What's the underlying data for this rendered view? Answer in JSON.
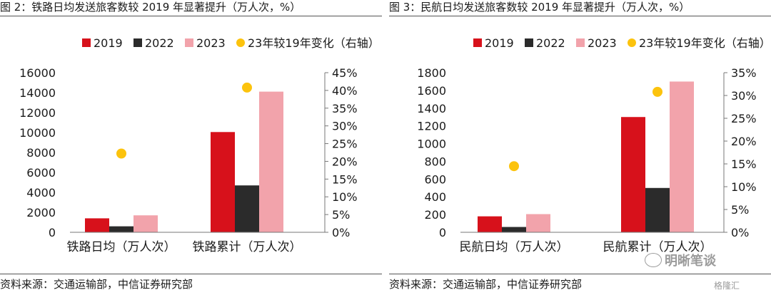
{
  "figures": [
    {
      "title": "图 2：铁路日均发送旅客数较 2019 年显著提升（万人次，%）",
      "source": "资料来源：交通运输部，中信证券研究部"
    },
    {
      "title": "图 3：民航日均发送旅客数较 2019 年显著提升（万人次，%）",
      "source": "资料来源：交通运输部，中信证券研究部"
    }
  ],
  "colors": {
    "2019": "#d7111b",
    "2022": "#2b2b2b",
    "2023": "#f2a3ab",
    "change": "#fcc30d"
  },
  "watermark": {
    "text": "明晰笔谈",
    "sub": "格隆汇"
  },
  "chart_data": [
    {
      "type": "bar",
      "categories": [
        "铁路日均（万人次）",
        "铁路累计（万人次）"
      ],
      "series": [
        {
          "name": "2019",
          "values": [
            1400,
            10050
          ]
        },
        {
          "name": "2022",
          "values": [
            600,
            4700
          ]
        },
        {
          "name": "2023",
          "values": [
            1700,
            14100
          ]
        }
      ],
      "secondary_series": {
        "name": "23年较19年变化（右轴）",
        "type": "scatter",
        "values": [
          22.2,
          40.8
        ]
      },
      "yticks": [
        "0",
        "2000",
        "4000",
        "6000",
        "8000",
        "10000",
        "12000",
        "14000",
        "16000"
      ],
      "y2ticks": [
        "0%",
        "5%",
        "10%",
        "15%",
        "20%",
        "25%",
        "30%",
        "35%",
        "40%",
        "45%"
      ],
      "ylim": [
        0,
        16000
      ],
      "y2lim": [
        0,
        45
      ],
      "legend_position": "top"
    },
    {
      "type": "bar",
      "categories": [
        "民航日均（万人次）",
        "民航累计（万人次）"
      ],
      "series": [
        {
          "name": "2019",
          "values": [
            180,
            1300
          ]
        },
        {
          "name": "2022",
          "values": [
            60,
            500
          ]
        },
        {
          "name": "2023",
          "values": [
            205,
            1700
          ]
        }
      ],
      "secondary_series": {
        "name": "23年较19年变化（右轴）",
        "type": "scatter",
        "values": [
          14.5,
          30.8
        ]
      },
      "yticks": [
        "0",
        "200",
        "400",
        "600",
        "800",
        "1000",
        "1200",
        "1400",
        "1600",
        "1800"
      ],
      "y2ticks": [
        "0%",
        "5%",
        "10%",
        "15%",
        "20%",
        "25%",
        "30%",
        "35%"
      ],
      "ylim": [
        0,
        1800
      ],
      "y2lim": [
        0,
        35
      ],
      "legend_position": "top"
    }
  ]
}
